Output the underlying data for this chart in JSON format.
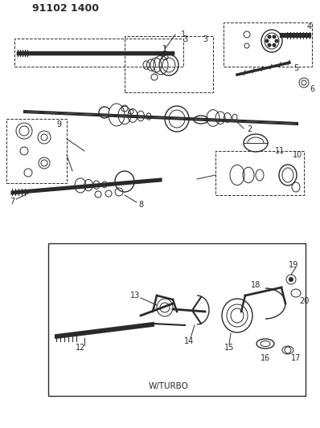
{
  "title_code": "91102 1400",
  "background_color": "#ffffff",
  "diagram_color": "#2a2a2a",
  "part_numbers": [
    1,
    2,
    3,
    4,
    5,
    6,
    7,
    8,
    9,
    10,
    11,
    12,
    13,
    14,
    15,
    16,
    17,
    18,
    19,
    20
  ],
  "wturbo_label": "W/TURBO",
  "fig_width": 3.98,
  "fig_height": 5.33,
  "dpi": 100
}
